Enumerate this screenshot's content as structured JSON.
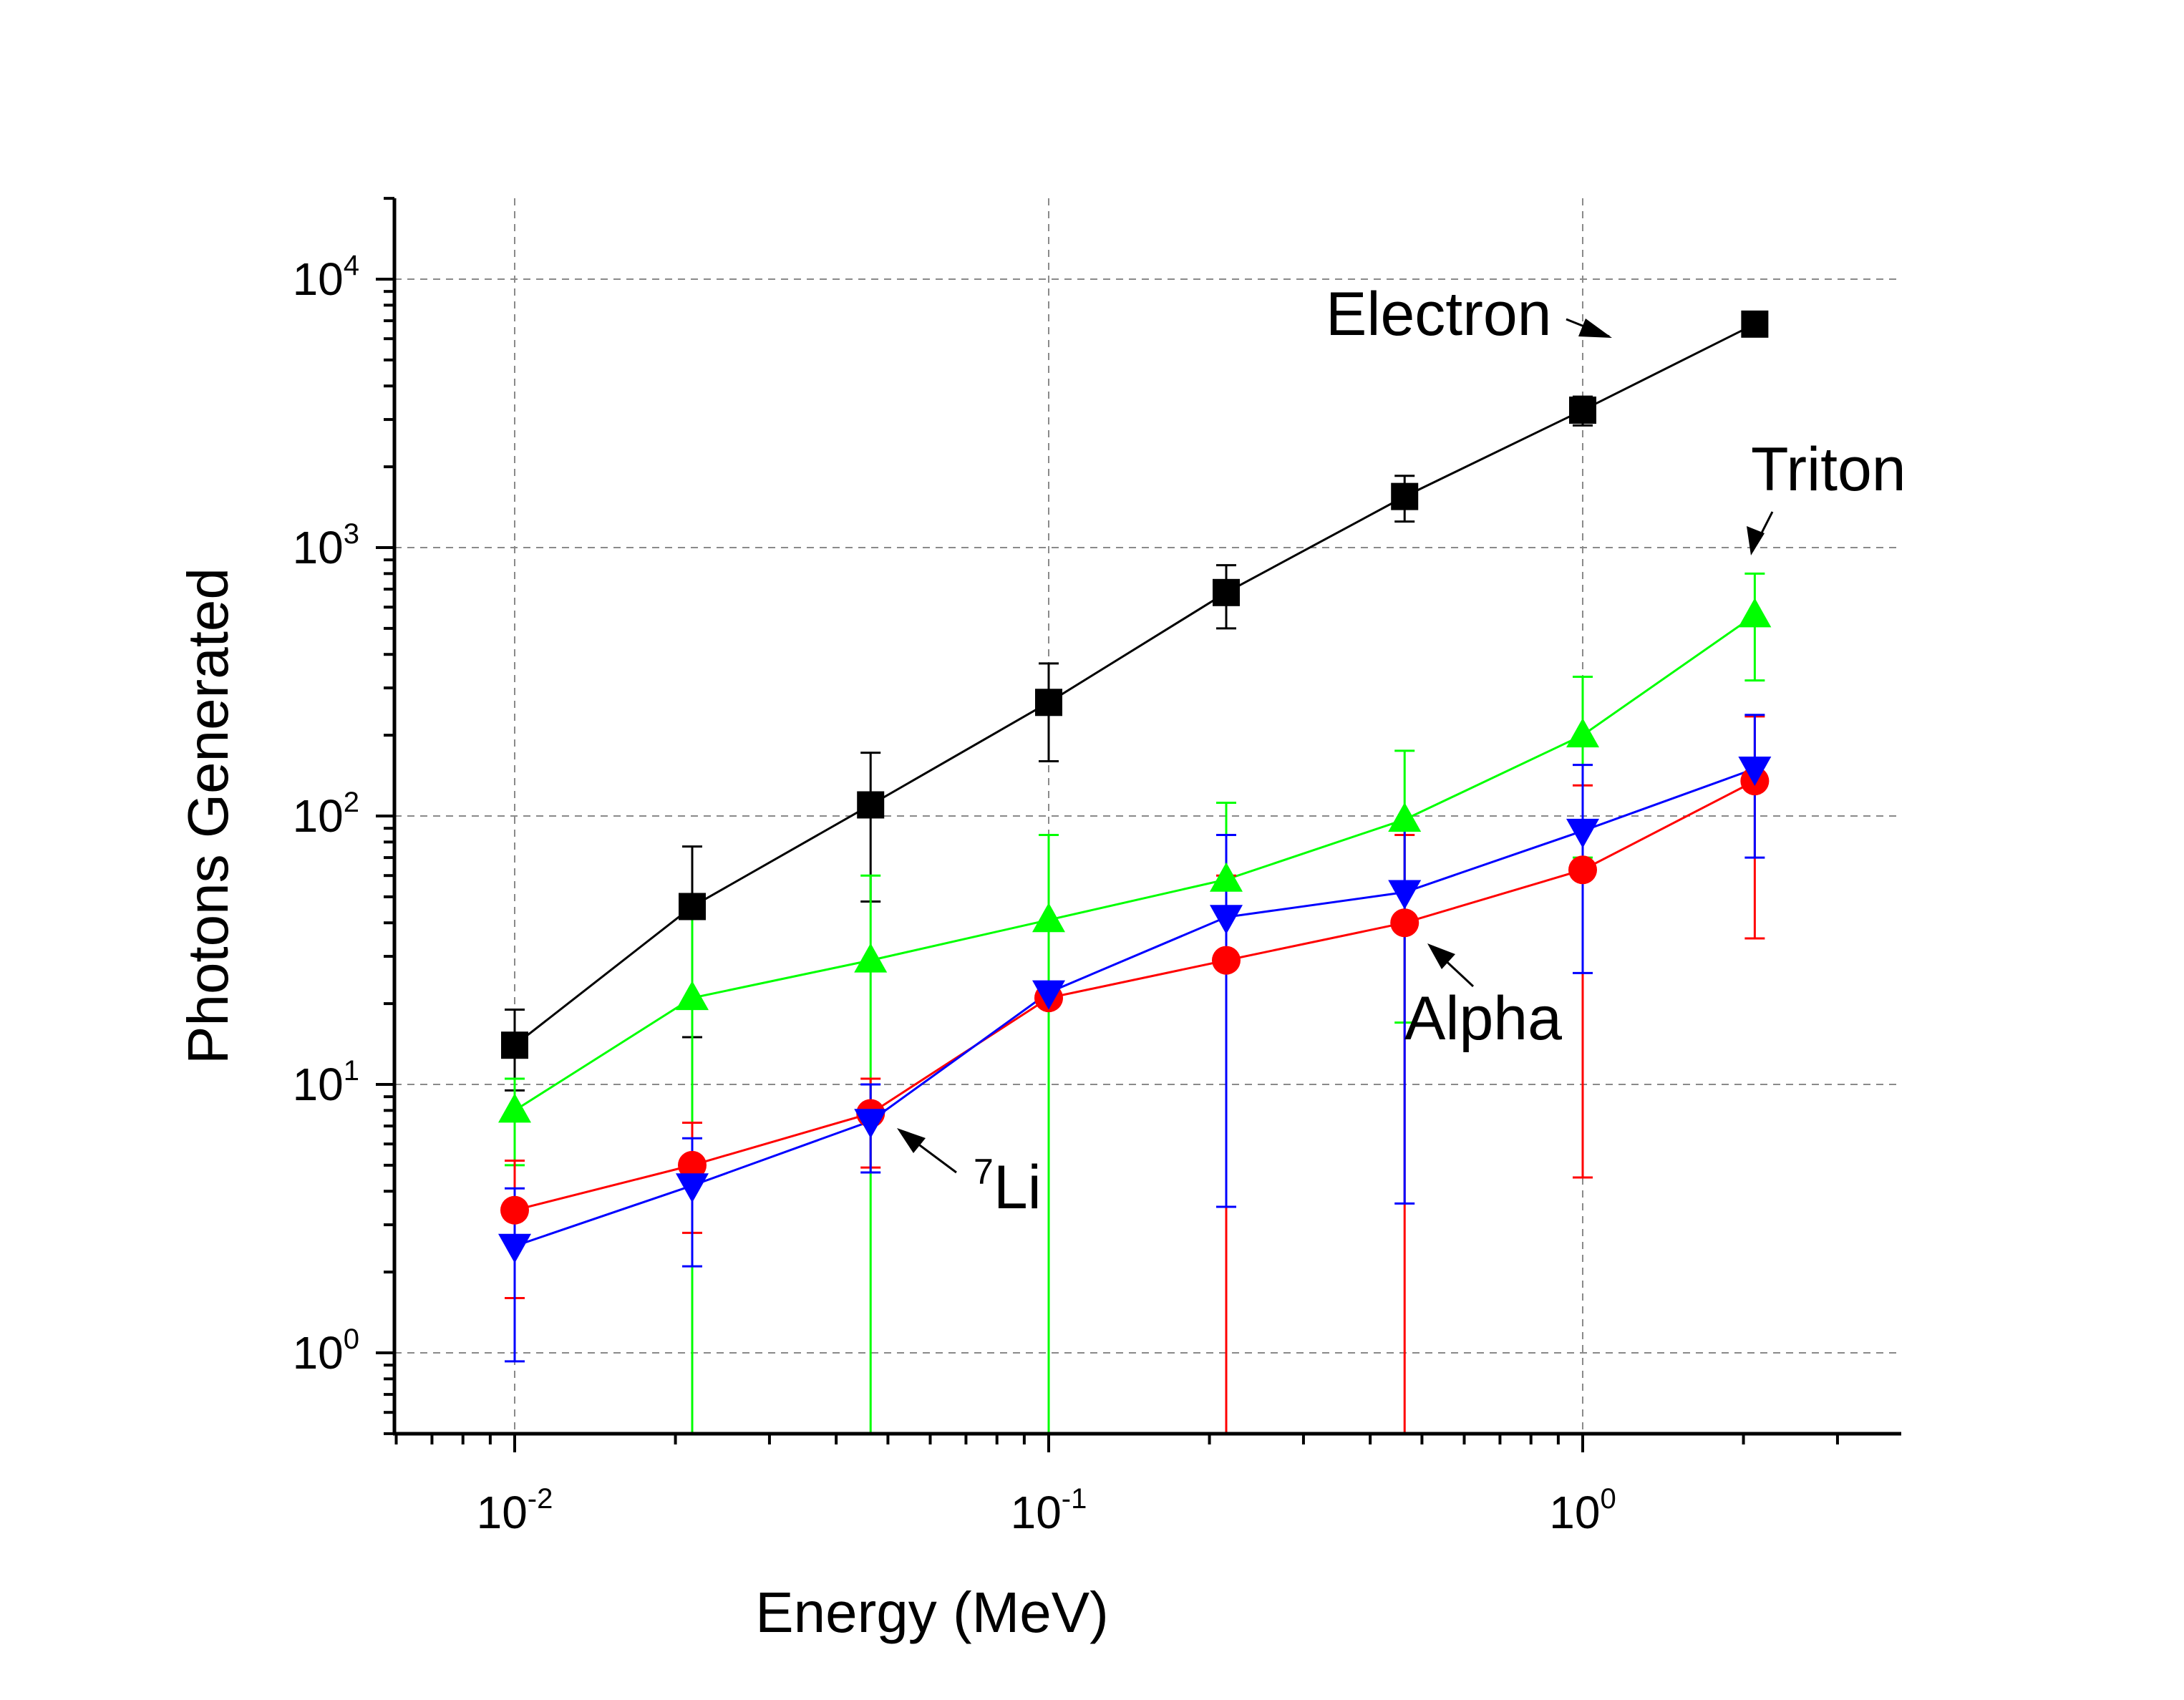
{
  "chart_data": {
    "type": "scatter",
    "xlabel": "Energy (MeV)",
    "ylabel": "Photons Generated",
    "xscale": "log",
    "yscale": "log",
    "xlim": [
      0.0056,
      3.5
    ],
    "ylim": [
      0.5,
      20000
    ],
    "grid": true,
    "x_ticks": [
      {
        "value": 0.01,
        "base": "10",
        "exp": "-2"
      },
      {
        "value": 0.1,
        "base": "10",
        "exp": "-1"
      },
      {
        "value": 1,
        "base": "10",
        "exp": "0"
      }
    ],
    "y_ticks": [
      {
        "value": 1,
        "base": "10",
        "exp": "0"
      },
      {
        "value": 10,
        "base": "10",
        "exp": "1"
      },
      {
        "value": 100,
        "base": "10",
        "exp": "2"
      },
      {
        "value": 1000,
        "base": "10",
        "exp": "3"
      },
      {
        "value": 10000,
        "base": "10",
        "exp": "4"
      }
    ],
    "series": [
      {
        "color": "#000000",
        "marker": "square",
        "x": [
          0.01,
          0.0215,
          0.0464,
          0.1,
          0.215,
          0.464,
          1.0,
          2.1
        ],
        "y": [
          14,
          46,
          110,
          265,
          680,
          1550,
          3250,
          6800
        ],
        "err_low": [
          9.5,
          15,
          48,
          160,
          500,
          1250,
          2850,
          6800
        ],
        "err_high": [
          19,
          77,
          172,
          370,
          860,
          1850,
          3650,
          6800
        ]
      },
      {
        "color": "#00ff00",
        "marker": "triangle-up",
        "x": [
          0.01,
          0.0215,
          0.0464,
          0.1,
          0.215,
          0.464,
          1.0,
          2.1
        ],
        "y": [
          8,
          21,
          29,
          41,
          58,
          97,
          200,
          560
        ],
        "err_low": [
          5,
          0.5,
          0.5,
          0.5,
          3.5,
          17,
          70,
          320
        ],
        "err_high": [
          10.5,
          45,
          60,
          85,
          112,
          175,
          330,
          800
        ]
      },
      {
        "color": "#ff0000",
        "marker": "circle",
        "x": [
          0.01,
          0.0215,
          0.0464,
          0.1,
          0.215,
          0.464,
          1.0,
          2.1
        ],
        "y": [
          3.4,
          5,
          7.8,
          21,
          29,
          40,
          63,
          135
        ],
        "err_low": [
          1.6,
          2.8,
          4.9,
          20,
          0.5,
          0.5,
          4.5,
          35
        ],
        "err_high": [
          5.2,
          7.2,
          10.5,
          23,
          60,
          85,
          130,
          235
        ]
      },
      {
        "color": "#0000ff",
        "marker": "triangle-down",
        "x": [
          0.01,
          0.0215,
          0.0464,
          0.1,
          0.215,
          0.464,
          1.0,
          2.1
        ],
        "y": [
          2.5,
          4.2,
          7.3,
          22,
          42,
          52,
          88,
          150
        ],
        "err_low": [
          0.93,
          2.1,
          4.7,
          21,
          3.5,
          3.6,
          26,
          70
        ],
        "err_high": [
          4.1,
          6.3,
          10,
          23.5,
          85,
          90,
          155,
          238
        ]
      }
    ],
    "annotations": [
      {
        "text": "Electron"
      },
      {
        "text": "Triton"
      },
      {
        "text": "Alpha"
      },
      {
        "sup": "7",
        "text": "Li"
      }
    ]
  }
}
